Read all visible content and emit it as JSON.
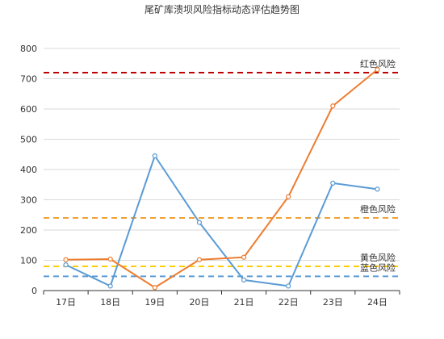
{
  "chart_data": {
    "type": "line",
    "title": "尾矿库溃坝风险指标动态评估趋势图",
    "xlabel": "",
    "ylabel": "",
    "categories": [
      "17日",
      "18日",
      "19日",
      "20日",
      "21日",
      "22日",
      "23日",
      "24日"
    ],
    "ylim": [
      0,
      800
    ],
    "yticks": [
      0,
      100,
      200,
      300,
      400,
      500,
      600,
      700,
      800
    ],
    "grid": true,
    "legend": "none",
    "series": [
      {
        "name": "",
        "color": "#5b9bd5",
        "values": [
          85,
          15,
          445,
          225,
          35,
          15,
          355,
          335
        ]
      },
      {
        "name": "",
        "color": "#ed7d31",
        "values": [
          102,
          104,
          10,
          102,
          110,
          310,
          610,
          730
        ]
      }
    ],
    "reference_lines": [
      {
        "label": "红色风险",
        "value": 720,
        "color": "#c00000"
      },
      {
        "label": "橙色风险",
        "value": 240,
        "color": "#f0a030"
      },
      {
        "label": "黄色风险",
        "value": 80,
        "color": "#ffcc00"
      },
      {
        "label": "蓝色风险",
        "value": 47,
        "color": "#5b9bd5"
      }
    ]
  }
}
